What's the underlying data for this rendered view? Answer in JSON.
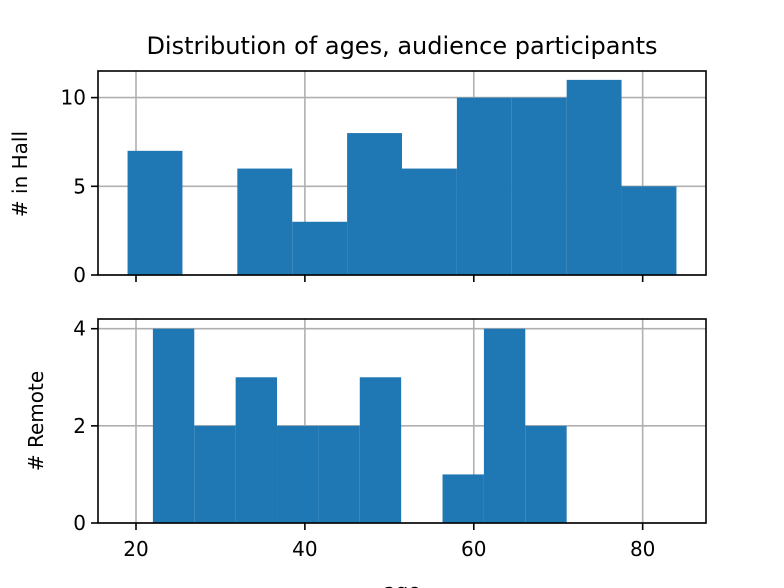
{
  "chart_data": [
    {
      "type": "bar",
      "title": "Distribution of ages, audience participants",
      "ylabel": "# in Hall",
      "xlabel": "",
      "xlim": [
        15.5,
        87.5
      ],
      "ylim": [
        0,
        11.5
      ],
      "xticks": [
        20,
        40,
        60,
        80
      ],
      "yticks": [
        0,
        5,
        10
      ],
      "grid": true,
      "bars": [
        {
          "x0": 19,
          "x1": 25.5,
          "value": 7
        },
        {
          "x0": 25.5,
          "x1": 32,
          "value": 0
        },
        {
          "x0": 32,
          "x1": 38.5,
          "value": 6
        },
        {
          "x0": 38.5,
          "x1": 45,
          "value": 3
        },
        {
          "x0": 45,
          "x1": 51.5,
          "value": 8
        },
        {
          "x0": 51.5,
          "x1": 58,
          "value": 6
        },
        {
          "x0": 58,
          "x1": 64.5,
          "value": 10
        },
        {
          "x0": 64.5,
          "x1": 71,
          "value": 10
        },
        {
          "x0": 71,
          "x1": 77.5,
          "value": 11
        },
        {
          "x0": 77.5,
          "x1": 84,
          "value": 5
        }
      ]
    },
    {
      "type": "bar",
      "title": "",
      "ylabel": "# Remote",
      "xlabel": "age",
      "xlim": [
        15.5,
        87.5
      ],
      "ylim": [
        0,
        4.2
      ],
      "xticks": [
        20,
        40,
        60,
        80
      ],
      "yticks": [
        0,
        2,
        4
      ],
      "grid": true,
      "bars": [
        {
          "x0": 22,
          "x1": 26.9,
          "value": 4
        },
        {
          "x0": 26.9,
          "x1": 31.8,
          "value": 2
        },
        {
          "x0": 31.8,
          "x1": 36.7,
          "value": 3
        },
        {
          "x0": 36.7,
          "x1": 41.6,
          "value": 2
        },
        {
          "x0": 41.6,
          "x1": 46.5,
          "value": 2
        },
        {
          "x0": 46.5,
          "x1": 51.4,
          "value": 3
        },
        {
          "x0": 51.4,
          "x1": 56.3,
          "value": 0
        },
        {
          "x0": 56.3,
          "x1": 61.2,
          "value": 1
        },
        {
          "x0": 61.2,
          "x1": 66.1,
          "value": 4
        },
        {
          "x0": 66.1,
          "x1": 71,
          "value": 2
        }
      ]
    }
  ],
  "colors": {
    "bar": "#1f77b4",
    "grid": "#b0b0b0",
    "axis": "#000000"
  }
}
